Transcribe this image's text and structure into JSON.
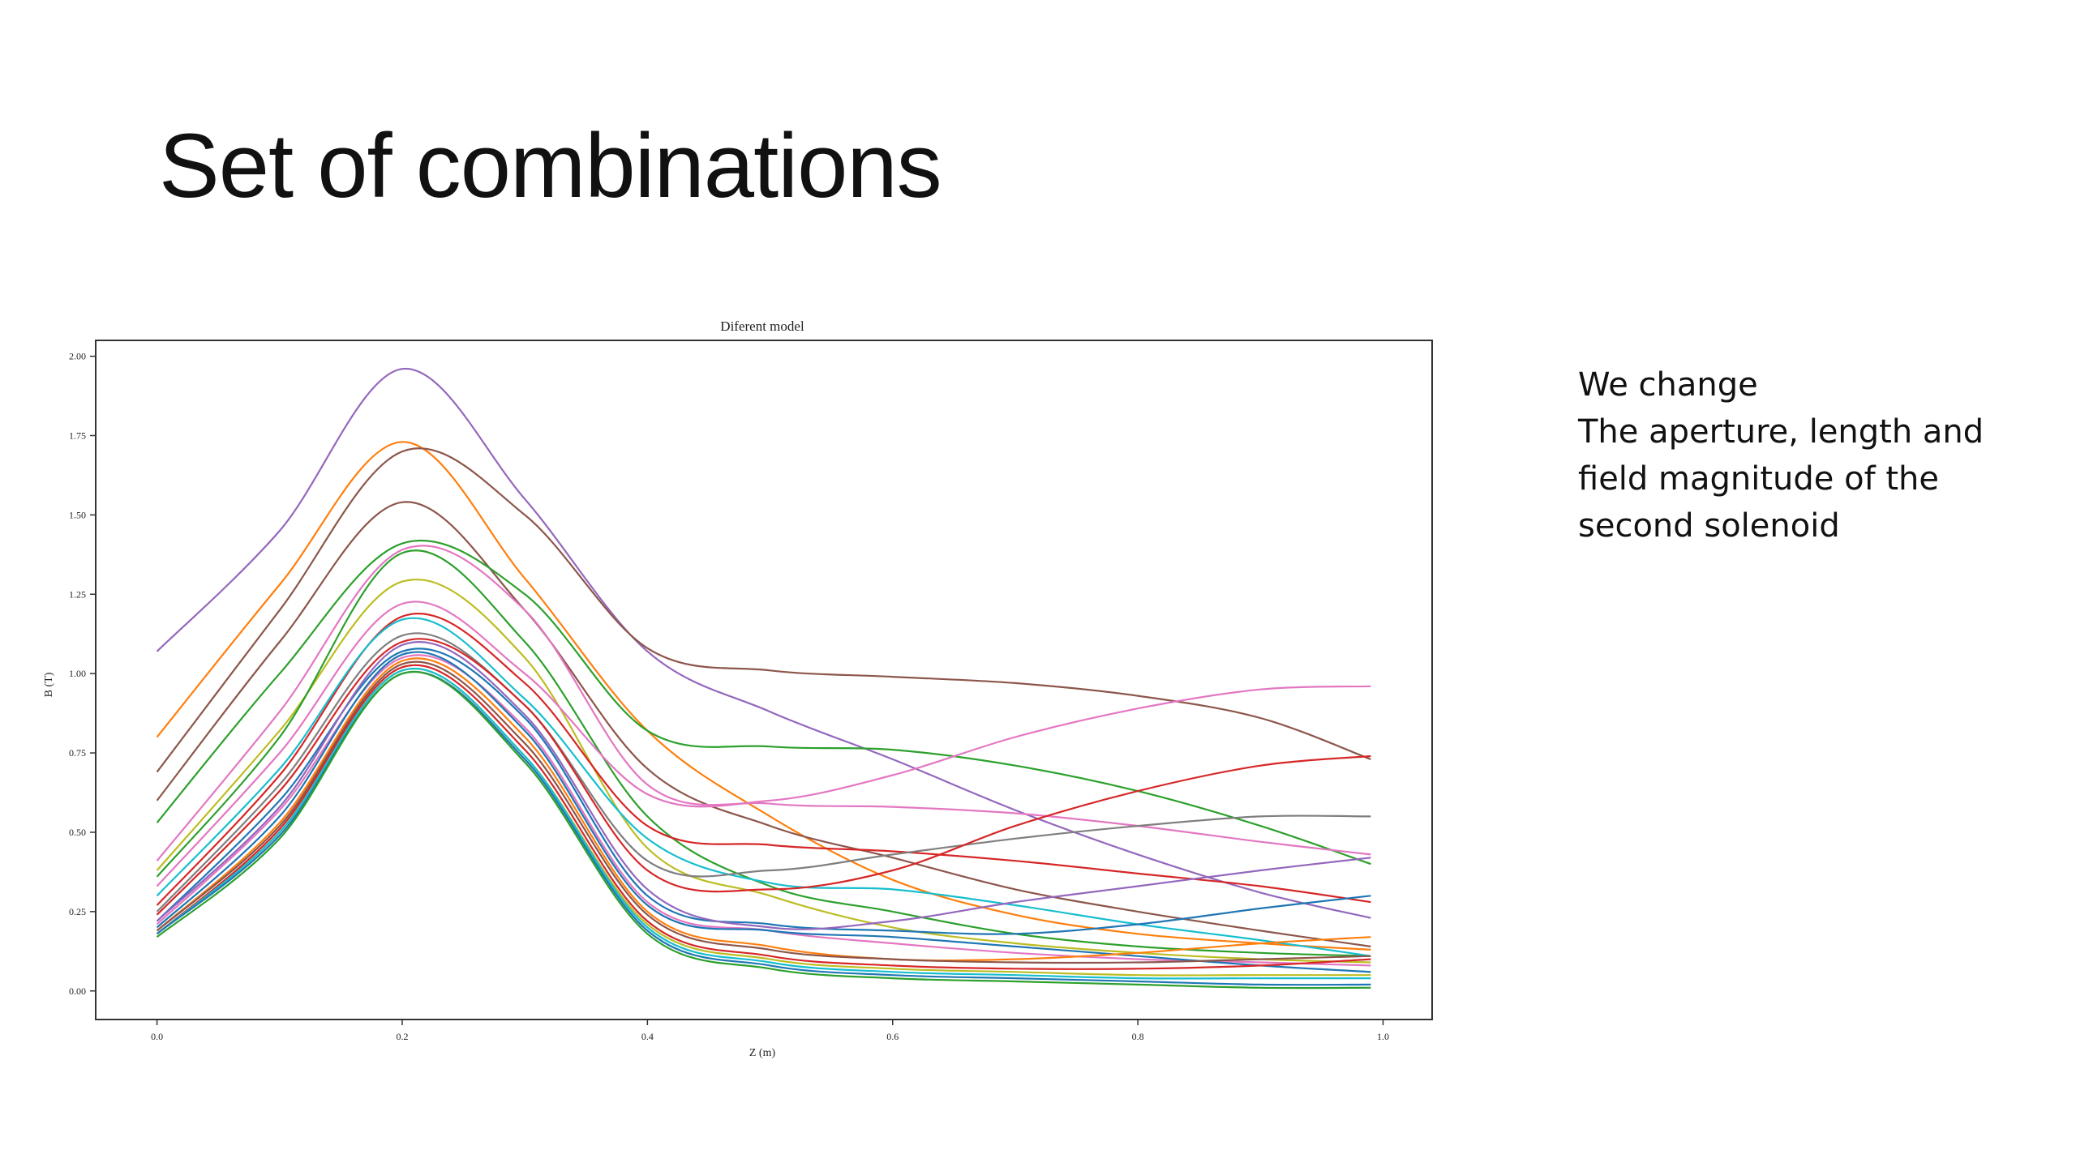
{
  "slide": {
    "title": "Set of combinations",
    "side_text": [
      "We change",
      "The aperture, length and",
      "field magnitude of the",
      "second solenoid"
    ]
  },
  "chart_data": {
    "type": "line",
    "title": "Diferent model",
    "xlabel": "Z (m)",
    "ylabel": "B (T)",
    "xlim": [
      -0.05,
      1.04
    ],
    "ylim": [
      -0.09,
      2.05
    ],
    "xticks": [
      "0.0",
      "0.2",
      "0.4",
      "0.6",
      "0.8",
      "1.0"
    ],
    "yticks": [
      "0.00",
      "0.25",
      "0.50",
      "0.75",
      "1.00",
      "1.25",
      "1.50",
      "1.75",
      "2.00"
    ],
    "grid": false,
    "legend": "none",
    "x": [
      0.0,
      0.1,
      0.2,
      0.3,
      0.4,
      0.5,
      0.6,
      0.7,
      0.8,
      0.9,
      0.99
    ],
    "series": [
      {
        "color": "#9467bd",
        "values": [
          1.07,
          1.45,
          1.96,
          1.55,
          1.07,
          0.88,
          0.73,
          0.57,
          0.43,
          0.31,
          0.23
        ]
      },
      {
        "color": "#ff7f0e",
        "values": [
          0.8,
          1.28,
          1.73,
          1.3,
          0.82,
          0.55,
          0.35,
          0.24,
          0.18,
          0.15,
          0.13
        ]
      },
      {
        "color": "#8c564b",
        "values": [
          0.69,
          1.2,
          1.7,
          1.5,
          1.08,
          1.01,
          0.99,
          0.97,
          0.93,
          0.86,
          0.73
        ]
      },
      {
        "color": "#8c564b",
        "values": [
          0.6,
          1.1,
          1.54,
          1.2,
          0.7,
          0.52,
          0.42,
          0.32,
          0.25,
          0.19,
          0.14
        ]
      },
      {
        "color": "#2ca02c",
        "values": [
          0.53,
          1.0,
          1.41,
          1.25,
          0.82,
          0.77,
          0.76,
          0.71,
          0.63,
          0.52,
          0.4
        ]
      },
      {
        "color": "#e377c2",
        "values": [
          0.41,
          0.88,
          1.39,
          1.2,
          0.65,
          0.59,
          0.58,
          0.56,
          0.52,
          0.47,
          0.43
        ]
      },
      {
        "color": "#bcbd22",
        "values": [
          0.38,
          0.82,
          1.29,
          1.05,
          0.45,
          0.3,
          0.2,
          0.15,
          0.12,
          0.1,
          0.09
        ]
      },
      {
        "color": "#2ca02c",
        "values": [
          0.36,
          0.8,
          1.38,
          1.1,
          0.55,
          0.33,
          0.25,
          0.18,
          0.14,
          0.12,
          0.11
        ]
      },
      {
        "color": "#e377c2",
        "values": [
          0.33,
          0.75,
          1.22,
          1.0,
          0.62,
          0.6,
          0.68,
          0.8,
          0.89,
          0.95,
          0.96
        ]
      },
      {
        "color": "#d62728",
        "values": [
          0.27,
          0.68,
          1.18,
          0.97,
          0.52,
          0.46,
          0.44,
          0.41,
          0.37,
          0.33,
          0.28
        ]
      },
      {
        "color": "#17becf",
        "values": [
          0.3,
          0.7,
          1.17,
          0.92,
          0.48,
          0.34,
          0.32,
          0.27,
          0.21,
          0.16,
          0.11
        ]
      },
      {
        "color": "#7f7f7f",
        "values": [
          0.25,
          0.65,
          1.12,
          0.9,
          0.41,
          0.38,
          0.43,
          0.48,
          0.52,
          0.55,
          0.55
        ]
      },
      {
        "color": "#d62728",
        "values": [
          0.24,
          0.63,
          1.1,
          0.9,
          0.38,
          0.32,
          0.38,
          0.52,
          0.63,
          0.71,
          0.74
        ]
      },
      {
        "color": "#1f77b4",
        "values": [
          0.22,
          0.6,
          1.07,
          0.86,
          0.3,
          0.21,
          0.19,
          0.18,
          0.21,
          0.26,
          0.3
        ]
      },
      {
        "color": "#9467bd",
        "values": [
          0.22,
          0.58,
          1.09,
          0.87,
          0.32,
          0.2,
          0.22,
          0.28,
          0.33,
          0.38,
          0.42
        ]
      },
      {
        "color": "#e377c2",
        "values": [
          0.21,
          0.57,
          1.05,
          0.83,
          0.28,
          0.19,
          0.15,
          0.12,
          0.1,
          0.09,
          0.08
        ]
      },
      {
        "color": "#1f77b4",
        "values": [
          0.2,
          0.55,
          1.06,
          0.82,
          0.27,
          0.19,
          0.17,
          0.14,
          0.11,
          0.08,
          0.06
        ]
      },
      {
        "color": "#ff7f0e",
        "values": [
          0.19,
          0.53,
          1.04,
          0.8,
          0.25,
          0.14,
          0.1,
          0.1,
          0.12,
          0.15,
          0.17
        ]
      },
      {
        "color": "#8c564b",
        "values": [
          0.19,
          0.52,
          1.03,
          0.78,
          0.24,
          0.13,
          0.1,
          0.09,
          0.09,
          0.1,
          0.11
        ]
      },
      {
        "color": "#d62728",
        "values": [
          0.18,
          0.51,
          1.02,
          0.76,
          0.22,
          0.11,
          0.08,
          0.07,
          0.07,
          0.08,
          0.1
        ]
      },
      {
        "color": "#bcbd22",
        "values": [
          0.18,
          0.5,
          1.01,
          0.74,
          0.21,
          0.1,
          0.07,
          0.06,
          0.05,
          0.05,
          0.05
        ]
      },
      {
        "color": "#17becf",
        "values": [
          0.18,
          0.5,
          1.01,
          0.74,
          0.2,
          0.09,
          0.06,
          0.05,
          0.04,
          0.04,
          0.04
        ]
      },
      {
        "color": "#1f77b4",
        "values": [
          0.18,
          0.49,
          1.0,
          0.73,
          0.19,
          0.08,
          0.05,
          0.04,
          0.03,
          0.02,
          0.02
        ]
      },
      {
        "color": "#2ca02c",
        "values": [
          0.17,
          0.48,
          1.0,
          0.72,
          0.18,
          0.07,
          0.04,
          0.03,
          0.02,
          0.01,
          0.01
        ]
      }
    ]
  }
}
